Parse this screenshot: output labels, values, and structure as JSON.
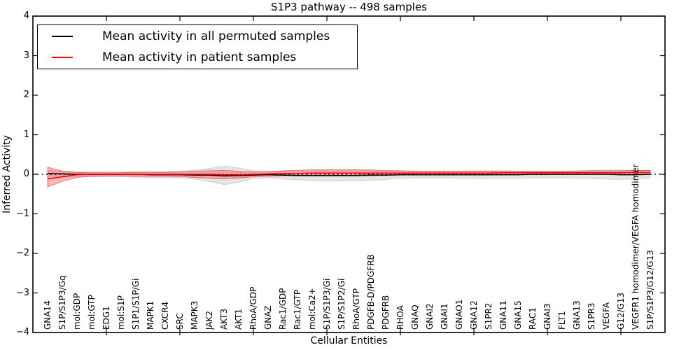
{
  "page": {
    "background": "#ffffff"
  },
  "chart_data": {
    "type": "line",
    "title": "S1P3 pathway -- 498 samples",
    "xlabel": "Cellular Entities",
    "ylabel": "Inferred Activity",
    "ylim": [
      -4,
      4
    ],
    "yticks": [
      4,
      3,
      2,
      1,
      0,
      -1,
      -2,
      -3,
      -4
    ],
    "grid": false,
    "legend_position": "upper left",
    "zero_reference_line": true,
    "colors": {
      "permuted_line": "#000000",
      "patient_line": "#ff0000",
      "permuted_band": "rgba(0,0,0,0.10)",
      "patient_band": "rgba(255,0,0,0.28)"
    },
    "categories": [
      "GNA14",
      "S1P/S1P3/Gq",
      "mol:GDP",
      "mol:GTP",
      "EDG1",
      "mol:S1P",
      "S1P1/S1P/Gi",
      "MAPK1",
      "CXCR4",
      "SRC",
      "MAPK3",
      "JAK2",
      "AKT3",
      "AKT1",
      "RhoA/GDP",
      "GNAZ",
      "Rac1/GDP",
      "Rac1/GTP",
      "mol:Ca2+",
      "S1P/S1P3/Gi",
      "S1P/S1P2/Gi",
      "RhoA/GTP",
      "PDGFB-D/PDGFRB",
      "PDGFRB",
      "RHOA",
      "GNAQ",
      "GNAI2",
      "GNAI1",
      "GNAO1",
      "GNA12",
      "S1PR2",
      "GNA11",
      "GNA15",
      "RAC1",
      "GNAI3",
      "FLT1",
      "GNA13",
      "S1PR3",
      "VEGFA",
      "G12/G13",
      "VEGFR1 homodimer/VEGFA homodimer",
      "S1P/S1P3/G12/G13"
    ],
    "series": [
      {
        "name": "Mean activity in all permuted samples",
        "color": "#000000",
        "style": "solid",
        "values": [
          0.02,
          0.01,
          0.0,
          0.0,
          0.0,
          0.0,
          0.0,
          -0.01,
          -0.01,
          -0.01,
          -0.02,
          -0.02,
          -0.04,
          -0.03,
          -0.02,
          -0.01,
          -0.02,
          -0.03,
          -0.03,
          -0.03,
          -0.03,
          -0.03,
          -0.02,
          -0.02,
          -0.01,
          -0.01,
          -0.01,
          -0.01,
          -0.01,
          -0.01,
          -0.01,
          -0.01,
          -0.01,
          0.0,
          0.0,
          0.0,
          0.0,
          0.0,
          0.0,
          -0.01,
          -0.01,
          0.0
        ]
      },
      {
        "name": "Mean activity in patient samples",
        "color": "#ff0000",
        "style": "solid",
        "values": [
          -0.12,
          -0.06,
          -0.01,
          0.0,
          0.0,
          0.0,
          0.0,
          0.0,
          0.0,
          0.0,
          0.0,
          0.0,
          -0.01,
          -0.01,
          0.0,
          0.01,
          0.02,
          0.02,
          0.03,
          0.03,
          0.03,
          0.03,
          0.03,
          0.03,
          0.03,
          0.03,
          0.03,
          0.03,
          0.03,
          0.03,
          0.03,
          0.04,
          0.04,
          0.04,
          0.04,
          0.04,
          0.04,
          0.04,
          0.04,
          0.04,
          0.05,
          0.05
        ]
      }
    ],
    "bands": [
      {
        "name": "permuted samples range",
        "color": "rgba(0,0,0,0.10)",
        "edge": "rgba(0,0,0,0.15)",
        "low": [
          -0.1,
          -0.08,
          -0.06,
          -0.06,
          -0.06,
          -0.06,
          -0.07,
          -0.08,
          -0.08,
          -0.09,
          -0.12,
          -0.18,
          -0.26,
          -0.2,
          -0.1,
          -0.09,
          -0.12,
          -0.14,
          -0.16,
          -0.17,
          -0.17,
          -0.16,
          -0.15,
          -0.13,
          -0.1,
          -0.09,
          -0.09,
          -0.09,
          -0.1,
          -0.11,
          -0.11,
          -0.1,
          -0.1,
          -0.09,
          -0.09,
          -0.09,
          -0.1,
          -0.11,
          -0.12,
          -0.13,
          -0.12,
          -0.1
        ],
        "high": [
          0.1,
          0.08,
          0.06,
          0.06,
          0.06,
          0.06,
          0.07,
          0.07,
          0.07,
          0.08,
          0.1,
          0.15,
          0.21,
          0.16,
          0.09,
          0.08,
          0.08,
          0.08,
          0.09,
          0.09,
          0.09,
          0.09,
          0.09,
          0.08,
          0.08,
          0.08,
          0.08,
          0.08,
          0.08,
          0.09,
          0.09,
          0.09,
          0.08,
          0.08,
          0.08,
          0.08,
          0.09,
          0.1,
          0.11,
          0.11,
          0.1,
          0.1
        ]
      },
      {
        "name": "patient samples range",
        "color": "rgba(255,0,0,0.28)",
        "edge": "rgba(255,0,0,0.45)",
        "low": [
          -0.32,
          -0.18,
          -0.08,
          -0.05,
          -0.04,
          -0.04,
          -0.05,
          -0.05,
          -0.05,
          -0.06,
          -0.08,
          -0.1,
          -0.12,
          -0.1,
          -0.06,
          -0.05,
          -0.04,
          -0.04,
          -0.04,
          -0.04,
          -0.04,
          -0.04,
          -0.04,
          -0.03,
          -0.02,
          -0.02,
          -0.02,
          -0.02,
          -0.02,
          -0.02,
          -0.02,
          -0.01,
          -0.01,
          -0.01,
          -0.01,
          0.0,
          0.0,
          0.0,
          0.0,
          0.0,
          0.0,
          0.0
        ],
        "high": [
          0.18,
          0.08,
          0.05,
          0.04,
          0.04,
          0.04,
          0.05,
          0.05,
          0.05,
          0.06,
          0.08,
          0.09,
          0.1,
          0.08,
          0.06,
          0.06,
          0.09,
          0.1,
          0.12,
          0.12,
          0.12,
          0.12,
          0.11,
          0.1,
          0.09,
          0.08,
          0.08,
          0.08,
          0.08,
          0.08,
          0.08,
          0.08,
          0.08,
          0.08,
          0.08,
          0.08,
          0.08,
          0.09,
          0.09,
          0.09,
          0.1,
          0.1
        ]
      }
    ]
  }
}
